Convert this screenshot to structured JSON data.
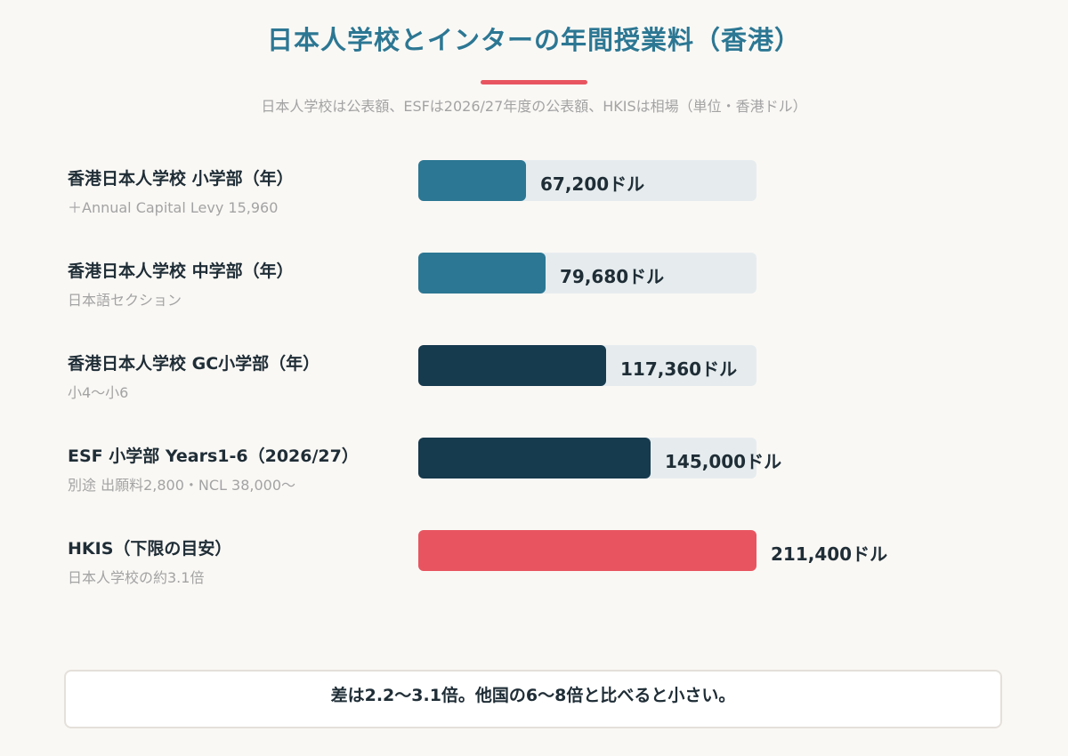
{
  "header": {
    "title": "日本人学校とインターの年間授業料（香港）",
    "subtitle": "日本人学校は公表額、ESFは2026/27年度の公表額、HKISは相場（単位・香港ドル）"
  },
  "colors": {
    "title": "#2c7793",
    "accent": "#e85560",
    "teal": "#2c7793",
    "navy": "#163a4e",
    "red": "#e85560",
    "track": "#e6ecee"
  },
  "chart_data": {
    "type": "bar",
    "orientation": "horizontal",
    "value_suffix": "ドル",
    "xlim": [
      0,
      211400
    ],
    "categories": [
      {
        "label": "香港日本人学校 小学部（年）",
        "note": "＋Annual Capital Levy 15,960",
        "value": 67200,
        "value_label": "67,200ドル",
        "color": "#2c7793"
      },
      {
        "label": "香港日本人学校 中学部（年）",
        "note": "日本語セクション",
        "value": 79680,
        "value_label": "79,680ドル",
        "color": "#2c7793"
      },
      {
        "label": "香港日本人学校 GC小学部（年）",
        "note": "小4〜小6",
        "value": 117360,
        "value_label": "117,360ドル",
        "color": "#163a4e"
      },
      {
        "label": "ESF 小学部 Years1-6（2026/27）",
        "note": "別途 出願料2,800・NCL 38,000〜",
        "value": 145000,
        "value_label": "145,000ドル",
        "color": "#163a4e"
      },
      {
        "label": "HKIS（下限の目安）",
        "note": "日本人学校の約3.1倍",
        "value": 211400,
        "value_label": "211,400ドル",
        "color": "#e85560"
      }
    ]
  },
  "summary": {
    "text": "差は2.2〜3.1倍。他国の6〜8倍と比べると小さい。"
  }
}
